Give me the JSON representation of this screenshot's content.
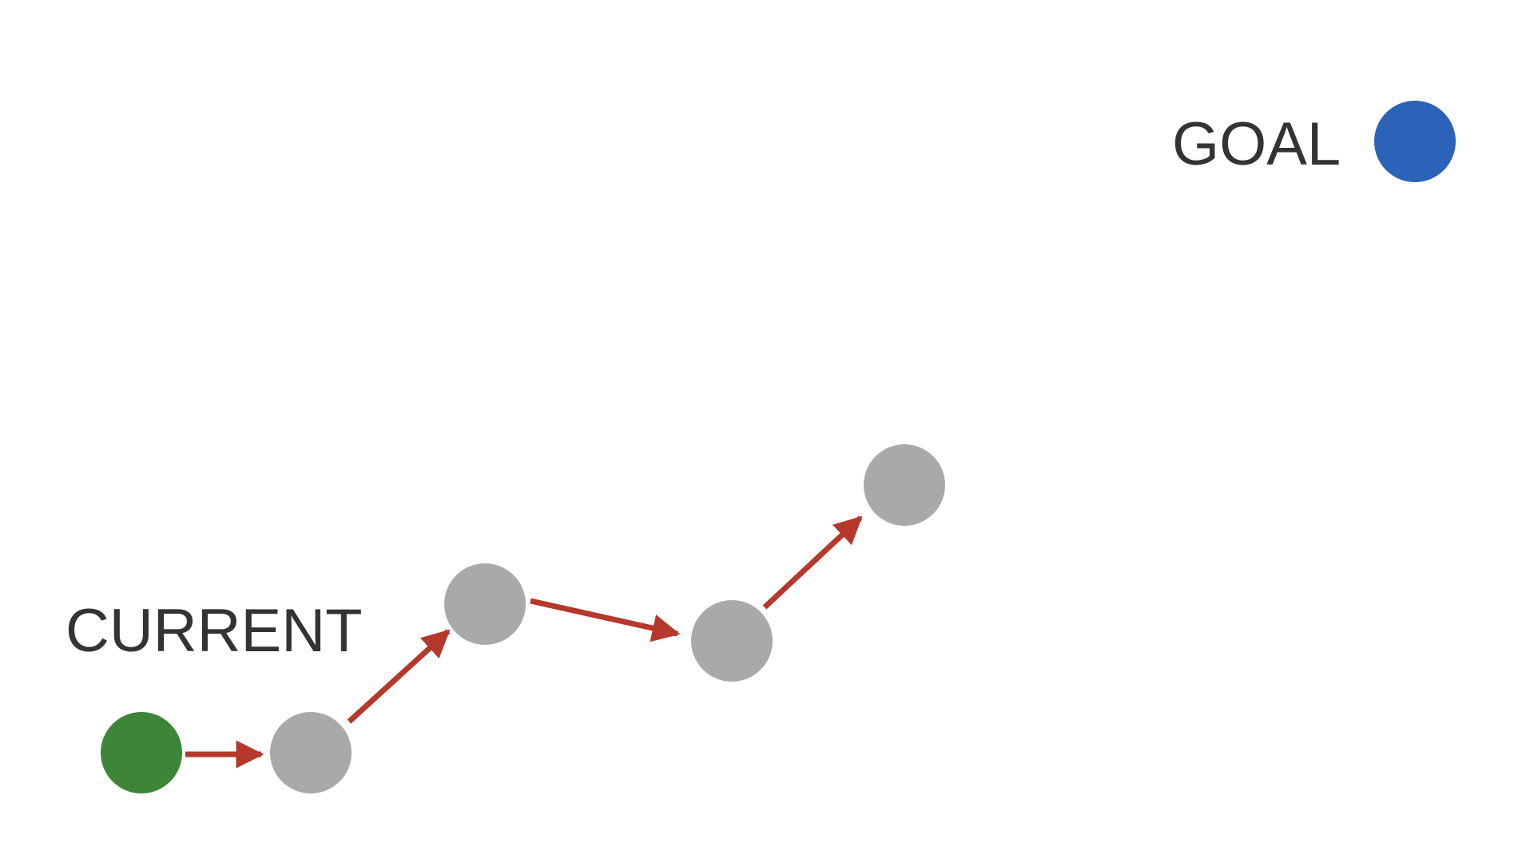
{
  "labels": {
    "current": "CURRENT",
    "goal": "GOAL"
  },
  "colors": {
    "current_node": "#3d8638",
    "goal_node": "#2a63b8",
    "step_node": "#a8a9a8",
    "arrow": "#b5382b",
    "text": "#333333",
    "background": "#ffffff"
  },
  "nodes": [
    {
      "id": "current",
      "kind": "current"
    },
    {
      "id": "step-1",
      "kind": "step"
    },
    {
      "id": "step-2",
      "kind": "step"
    },
    {
      "id": "step-3",
      "kind": "step"
    },
    {
      "id": "step-4",
      "kind": "step"
    },
    {
      "id": "goal",
      "kind": "goal"
    }
  ],
  "edges": [
    {
      "from": "current",
      "to": "step-1"
    },
    {
      "from": "step-1",
      "to": "step-2"
    },
    {
      "from": "step-2",
      "to": "step-3"
    },
    {
      "from": "step-3",
      "to": "step-4"
    }
  ]
}
